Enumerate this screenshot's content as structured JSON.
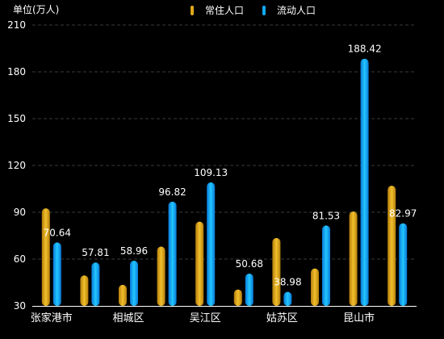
{
  "unit_label": "单位(万人)",
  "legend": {
    "item1": "常住人口",
    "item2": "流动人口"
  },
  "colors": {
    "resident": "#e0a81a",
    "floating": "#10aaf5",
    "grid": "#3a3a3a",
    "text": "#ffffff"
  },
  "chart_data": {
    "type": "bar",
    "ylim": [
      30,
      210
    ],
    "yticks": [
      30,
      60,
      90,
      120,
      150,
      180,
      210
    ],
    "xtick_labels": [
      "张家港市",
      "相城区",
      "吴江区",
      "姑苏区",
      "昆山市"
    ],
    "series": [
      {
        "name": "常住人口",
        "values": [
          92.5,
          49.5,
          43.5,
          68,
          84,
          40.5,
          73.5,
          54,
          90.5,
          107
        ]
      },
      {
        "name": "流动人口",
        "values": [
          70.64,
          57.81,
          58.96,
          96.82,
          109.13,
          50.68,
          38.98,
          81.53,
          188.42,
          82.97
        ],
        "labels": [
          "70.64",
          "57.81",
          "58.96",
          "96.82",
          "109.13",
          "50.68",
          "38.98",
          "81.53",
          "188.42",
          "82.97"
        ]
      }
    ]
  }
}
